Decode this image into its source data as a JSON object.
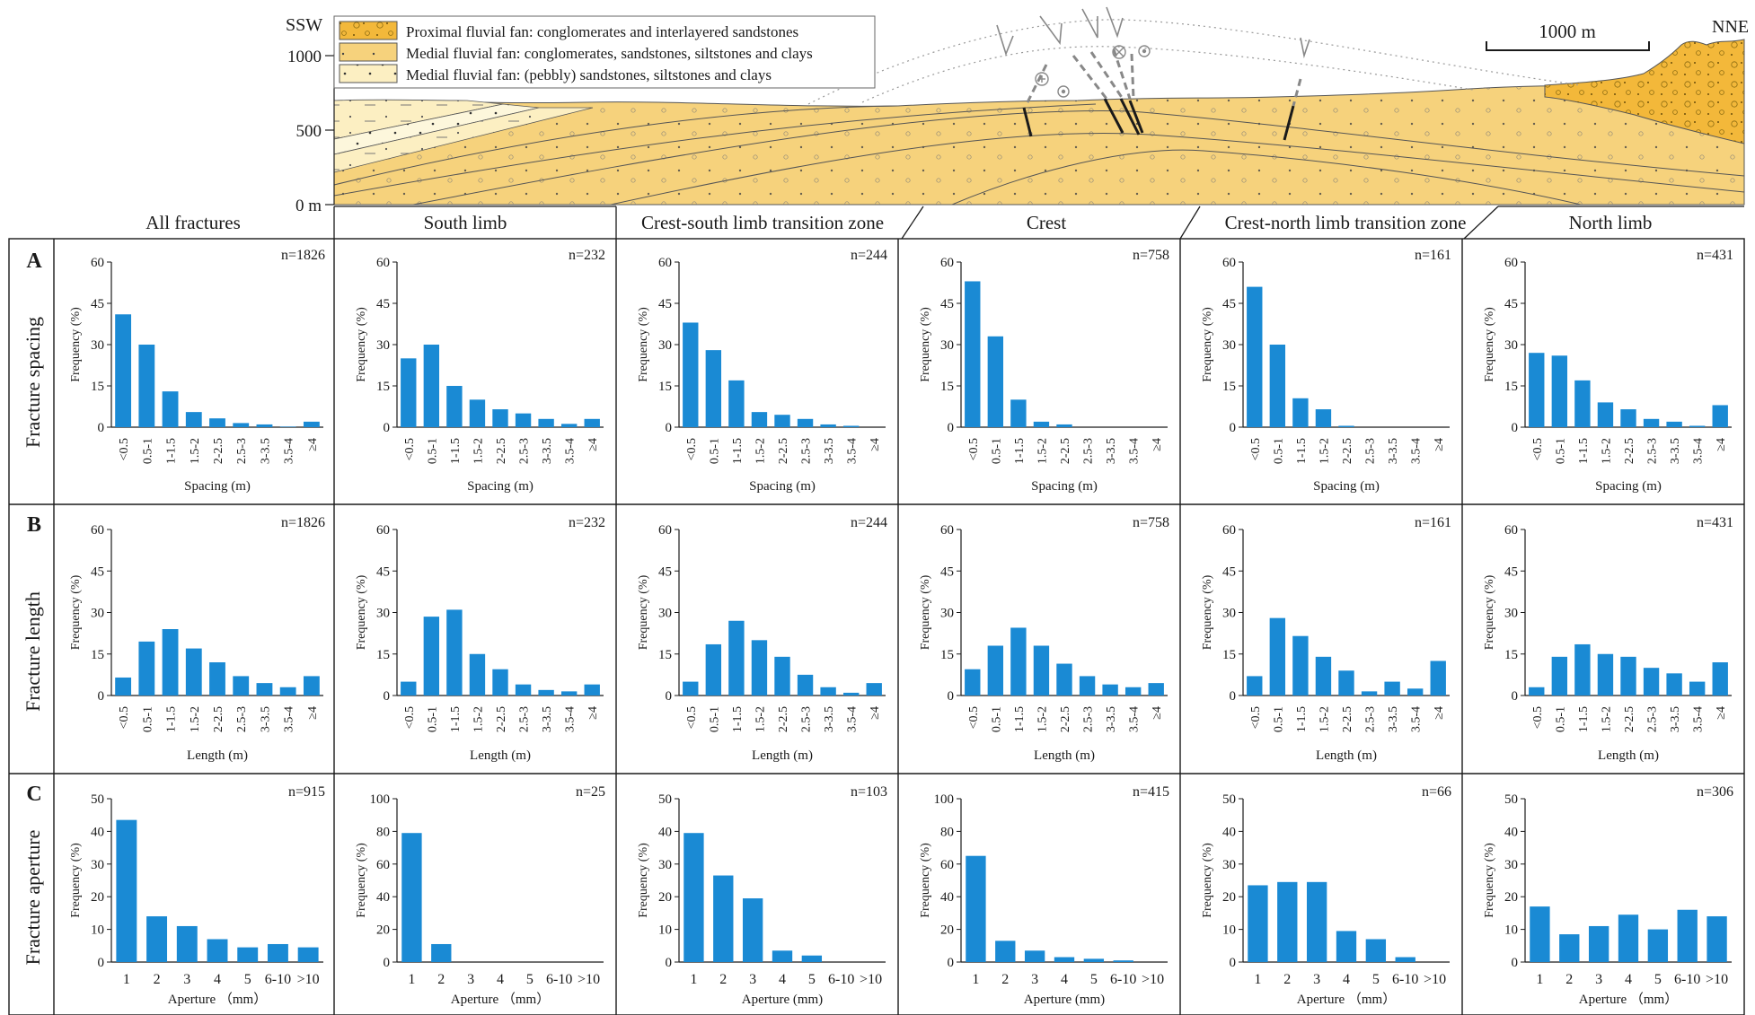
{
  "section": {
    "directions": {
      "left": "SSW",
      "right": "NNE"
    },
    "scale_bar": "1000 m",
    "elev_ticks": [
      "1000",
      "500",
      "0 m"
    ],
    "legend": [
      "Proximal fluvial fan: conglomerates and interlayered sandstones",
      "Medial fluvial fan: conglomerates, sandstones, siltstones and clays",
      "Medial fluvial fan: (pebbly) sandstones, siltstones and clays"
    ],
    "colors": {
      "dark_yellow": "#f3b83a",
      "mid_yellow": "#f6d27c",
      "light_yellow": "#fcefc2",
      "pale": "#fdf7dc"
    }
  },
  "columns": [
    "All fractures",
    "South limb",
    "Crest-south limb transition zone",
    "Crest",
    "Crest-north limb transition zone",
    "North limb"
  ],
  "rows": [
    {
      "letter": "A",
      "label": "Fracture spacing"
    },
    {
      "letter": "B",
      "label": "Fracture length"
    },
    {
      "letter": "C",
      "label": "Fracture aperture"
    }
  ],
  "bar_color": "#1a8ad4",
  "chart_data": [
    {
      "type": "bar",
      "row": "A",
      "ylabel": "Frequency (%)",
      "ylim": [
        0,
        60
      ],
      "yticks": [
        "0",
        "15",
        "30",
        "45",
        "60"
      ],
      "categories": [
        "<0.5",
        "0.5-1",
        "1-1.5",
        "1.5-2",
        "2-2.5",
        "2.5-3",
        "3-3.5",
        "3.5-4",
        "≥4"
      ],
      "panels": [
        {
          "column": "All fractures",
          "n": "n=1826",
          "xlabel": "Spacing (m)",
          "values": [
            41,
            30,
            13,
            5.5,
            3.2,
            1.5,
            1,
            0.2,
            2
          ]
        },
        {
          "column": "South limb",
          "n": "n=232",
          "xlabel": "Spacing (m)",
          "values": [
            25,
            30,
            15,
            10,
            6.5,
            5,
            3,
            1.2,
            3
          ]
        },
        {
          "column": "Crest-south limb transition zone",
          "n": "n=244",
          "xlabel": "Spacing  (m)",
          "values": [
            38,
            28,
            17,
            5.5,
            4.5,
            3,
            1,
            0.5,
            0
          ]
        },
        {
          "column": "Crest",
          "n": "n=758",
          "xlabel": "Spacing (m)",
          "values": [
            53,
            33,
            10,
            2,
            1,
            0,
            0,
            0,
            0
          ]
        },
        {
          "column": "Crest-north limb transition zone",
          "n": "n=161",
          "xlabel": "Spacing (m)",
          "values": [
            51,
            30,
            10.5,
            6.5,
            0.5,
            0,
            0,
            0,
            0
          ]
        },
        {
          "column": "North limb",
          "n": "n=431",
          "xlabel": "Spacing (m)",
          "values": [
            27,
            26,
            17,
            9,
            6.5,
            3,
            2,
            0.5,
            8
          ]
        }
      ]
    },
    {
      "type": "bar",
      "row": "B",
      "ylabel": "Frequency (%)",
      "ylim": [
        0,
        60
      ],
      "yticks": [
        "0",
        "15",
        "30",
        "45",
        "60"
      ],
      "categories": [
        "<0.5",
        "0.5-1",
        "1-1.5",
        "1.5-2",
        "2-2.5",
        "2.5-3",
        "3-3.5",
        "3.5-4",
        "≥4"
      ],
      "panels": [
        {
          "column": "All fractures",
          "n": "n=1826",
          "xlabel": "Length (m)",
          "values": [
            6.5,
            19.5,
            24,
            17,
            12,
            7,
            4.5,
            3,
            7
          ]
        },
        {
          "column": "South limb",
          "n": "n=232",
          "xlabel": "Length (m)",
          "values": [
            5,
            28.5,
            31,
            15,
            9.5,
            4,
            2,
            1.5,
            4
          ]
        },
        {
          "column": "Crest-south limb transition zone",
          "n": "n=244",
          "xlabel": "Length (m)",
          "values": [
            5,
            18.5,
            27,
            20,
            14,
            7.5,
            3,
            1,
            4.5
          ]
        },
        {
          "column": "Crest",
          "n": "n=758",
          "xlabel": "Length (m)",
          "values": [
            9.5,
            18,
            24.5,
            18,
            11.5,
            7,
            4,
            3,
            4.5
          ]
        },
        {
          "column": "Crest-north limb transition zone",
          "n": "n=161",
          "xlabel": "Length (m)",
          "values": [
            7,
            28,
            21.5,
            14,
            9,
            1.5,
            5,
            2.5,
            12.5
          ]
        },
        {
          "column": "North limb",
          "n": "n=431",
          "xlabel": "Length (m)",
          "values": [
            3,
            14,
            18.5,
            15,
            14,
            10,
            8,
            5,
            12
          ]
        }
      ]
    },
    {
      "type": "bar",
      "row": "C",
      "ylabel": "Frequency (%)",
      "categories": [
        "1",
        "2",
        "3",
        "4",
        "5",
        "6-10",
        ">10"
      ],
      "panels": [
        {
          "column": "All fractures",
          "n": "n=915",
          "xlabel": "Aperture （mm）",
          "ylim": [
            0,
            50
          ],
          "yticks": [
            "0",
            "10",
            "20",
            "30",
            "40",
            "50"
          ],
          "values": [
            43.5,
            14,
            11,
            7,
            4.5,
            5.5,
            4.5
          ]
        },
        {
          "column": "South limb",
          "n": "n=25",
          "xlabel": "Aperture （mm）",
          "ylim": [
            0,
            100
          ],
          "yticks": [
            "0",
            "20",
            "40",
            "60",
            "80",
            "100"
          ],
          "values": [
            79,
            11,
            0,
            0,
            0,
            0,
            0
          ]
        },
        {
          "column": "Crest-south limb transition zone",
          "n": "n=103",
          "xlabel": "Aperture (mm)",
          "ylim": [
            0,
            50
          ],
          "yticks": [
            "0",
            "10",
            "20",
            "30",
            "40",
            "50"
          ],
          "values": [
            39.5,
            26.5,
            19.5,
            3.5,
            2,
            0,
            0
          ]
        },
        {
          "column": "Crest",
          "n": "n=415",
          "xlabel": "Aperture (mm)",
          "ylim": [
            0,
            100
          ],
          "yticks": [
            "0",
            "20",
            "40",
            "60",
            "80",
            "100"
          ],
          "values": [
            65,
            13,
            7,
            3,
            2,
            1,
            0
          ]
        },
        {
          "column": "Crest-north limb transition zone",
          "n": "n=66",
          "xlabel": "Aperture （mm）",
          "ylim": [
            0,
            50
          ],
          "yticks": [
            "0",
            "10",
            "20",
            "30",
            "40",
            "50"
          ],
          "values": [
            23.5,
            24.5,
            24.5,
            9.5,
            7,
            1.5,
            0
          ]
        },
        {
          "column": "North limb",
          "n": "n=306",
          "xlabel": "Aperture （mm）",
          "ylim": [
            0,
            50
          ],
          "yticks": [
            "0",
            "10",
            "20",
            "30",
            "40",
            "50"
          ],
          "values": [
            17,
            8.5,
            11,
            14.5,
            10,
            16,
            14
          ]
        }
      ]
    }
  ]
}
